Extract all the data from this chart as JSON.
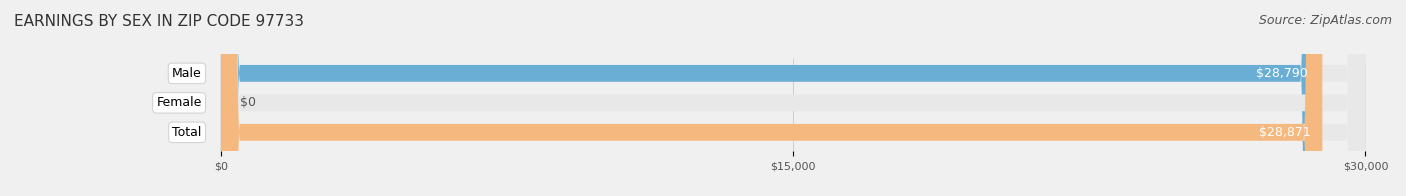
{
  "title": "EARNINGS BY SEX IN ZIP CODE 97733",
  "source": "Source: ZipAtlas.com",
  "categories": [
    "Male",
    "Female",
    "Total"
  ],
  "values": [
    28790,
    0,
    28871
  ],
  "bar_colors": [
    "#6aaed6",
    "#f4a0b0",
    "#f5b97f"
  ],
  "label_colors": [
    "#ffffff",
    "#555555",
    "#ffffff"
  ],
  "bar_labels": [
    "$28,790",
    "$0",
    "$28,871"
  ],
  "xlim": [
    0,
    30000
  ],
  "xticks": [
    0,
    15000,
    30000
  ],
  "xtick_labels": [
    "$0",
    "$15,000",
    "$30,000"
  ],
  "title_fontsize": 11,
  "source_fontsize": 9,
  "bar_height": 0.55,
  "background_color": "#f0f0f0",
  "bar_bg_color": "#e8e8e8",
  "label_fontsize": 9,
  "category_fontsize": 9
}
